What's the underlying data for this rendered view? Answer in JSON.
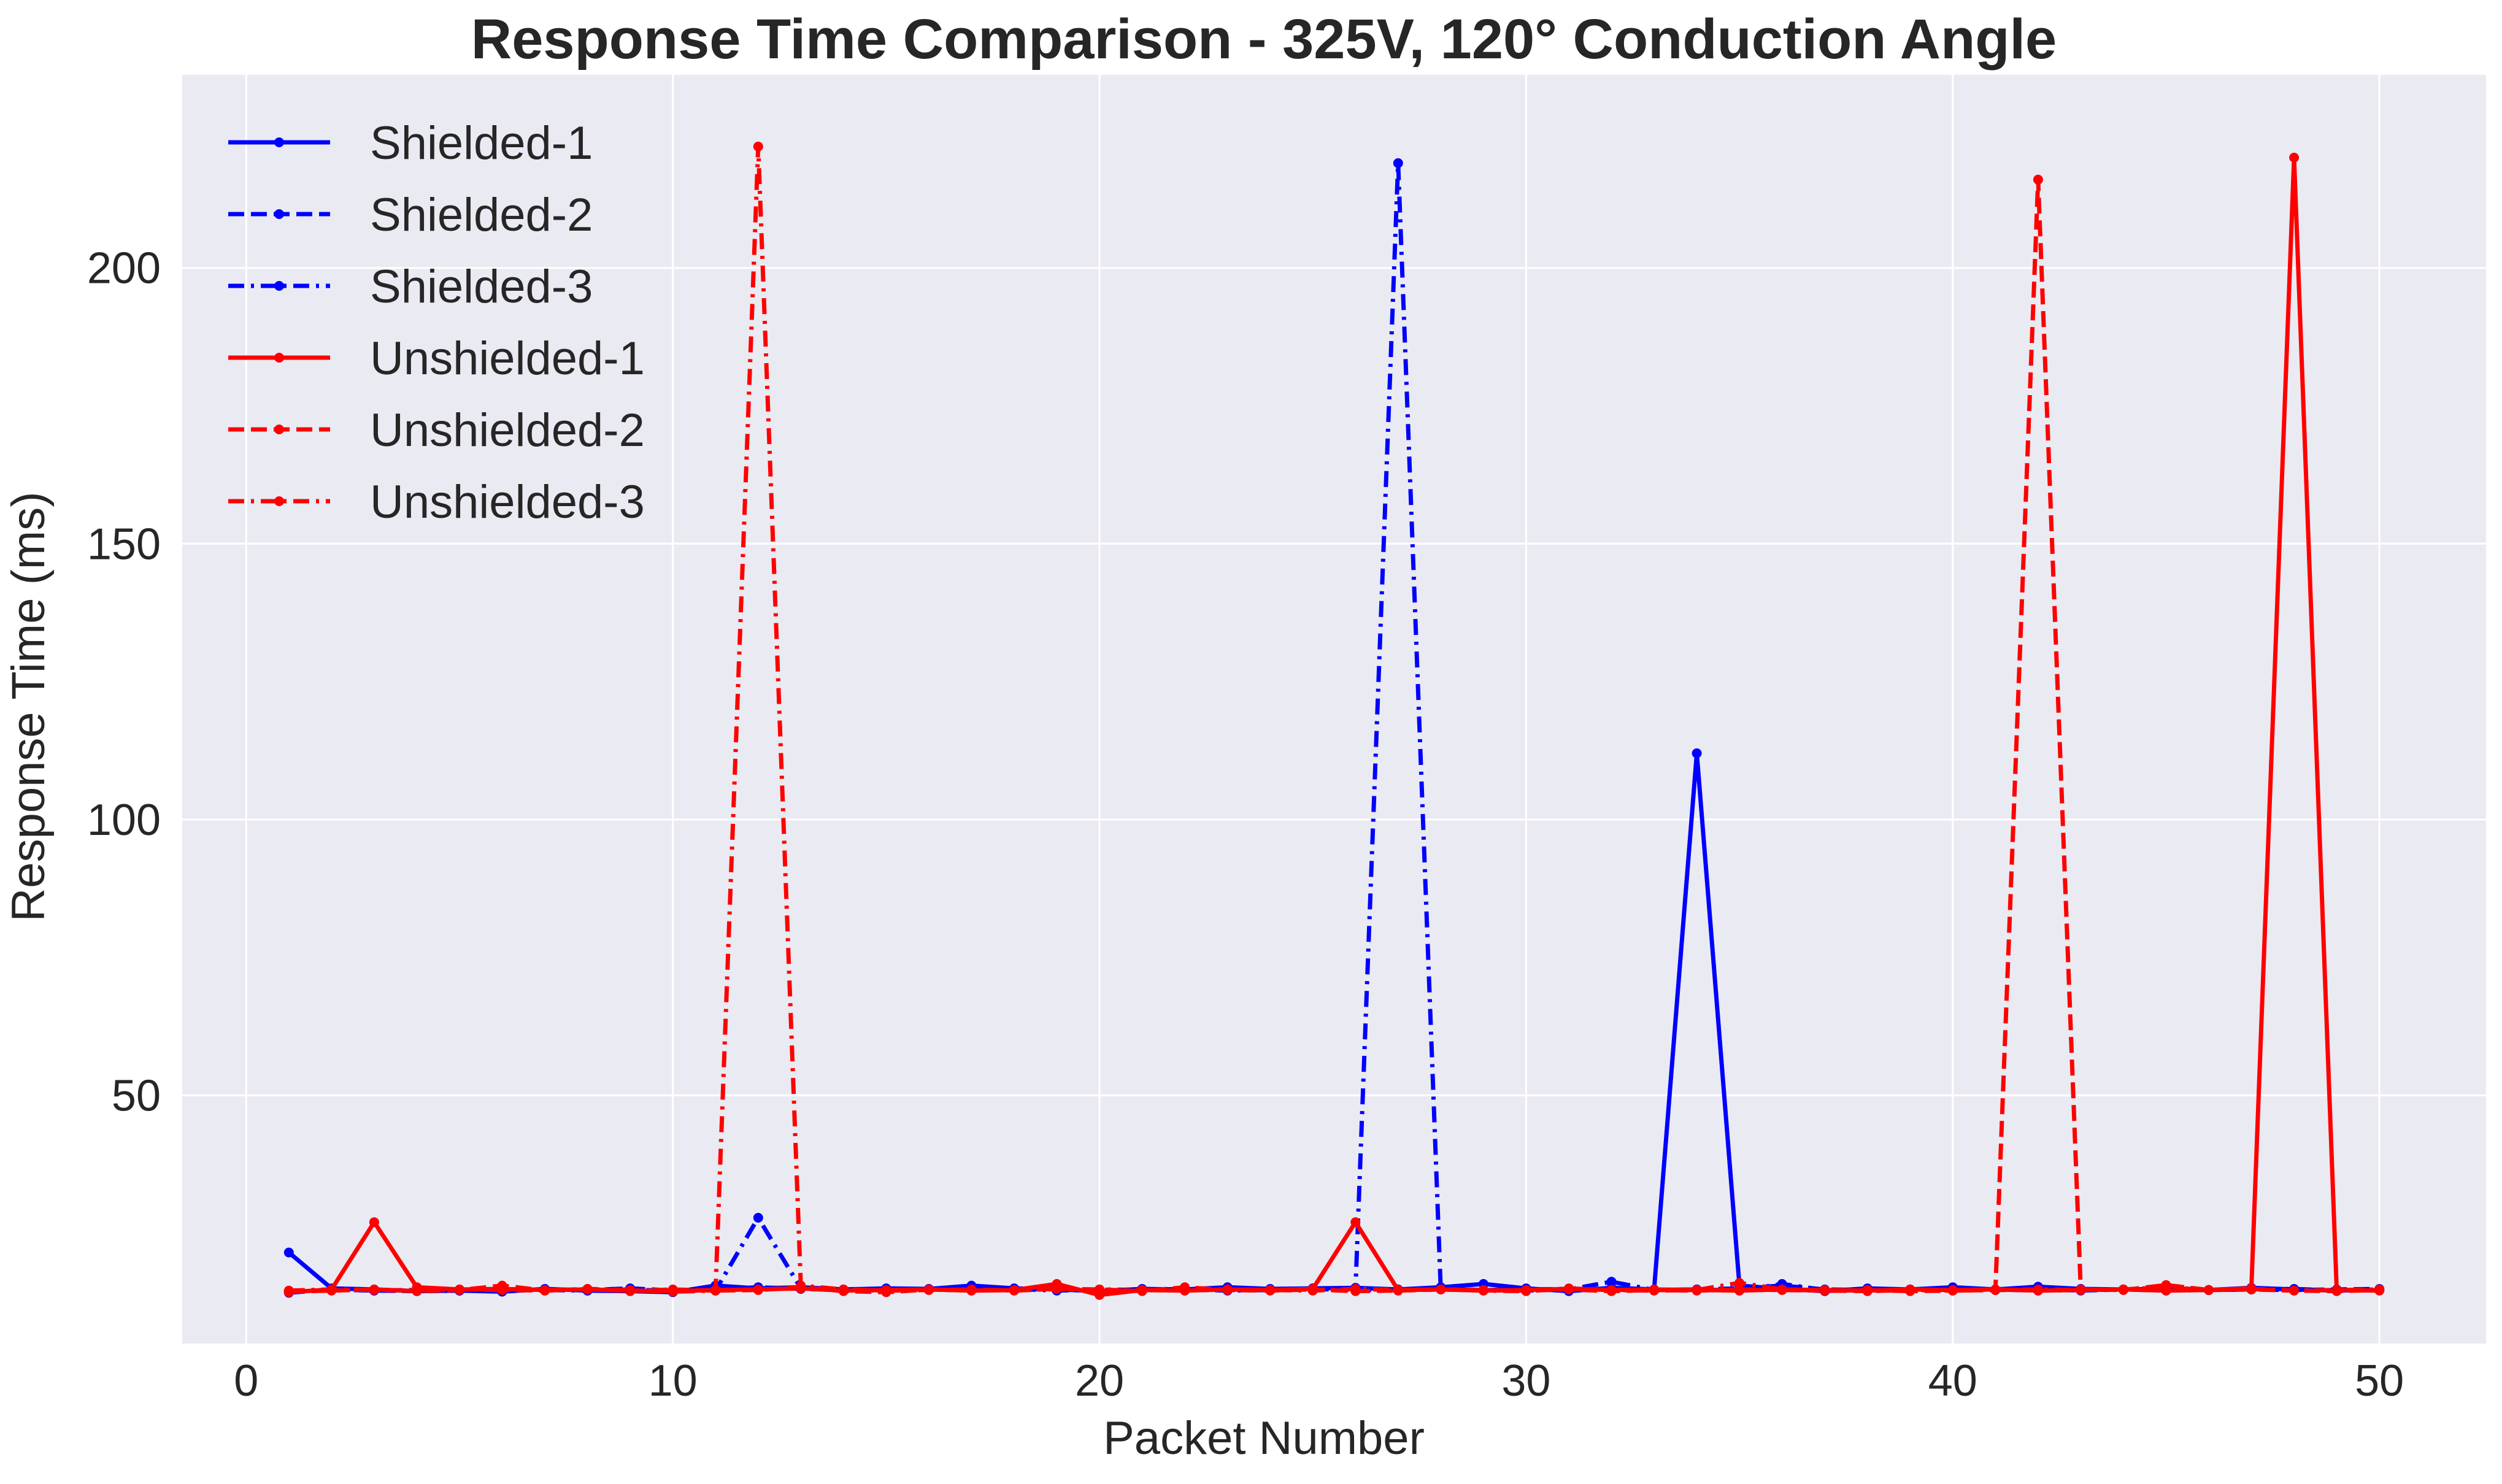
{
  "chart_data": {
    "type": "line",
    "title": "Response Time Comparison - 325V, 120° Conduction Angle",
    "xlabel": "Packet Number",
    "ylabel": "Response Time (ms)",
    "xlim": [
      -1.5,
      52.5
    ],
    "ylim": [
      5,
      235
    ],
    "xticks": [
      0,
      10,
      20,
      30,
      40,
      50
    ],
    "yticks": [
      50,
      100,
      150,
      200
    ],
    "grid": true,
    "legend_position": "top-left",
    "x": [
      1,
      2,
      3,
      4,
      5,
      6,
      7,
      8,
      9,
      10,
      11,
      12,
      13,
      14,
      15,
      16,
      17,
      18,
      19,
      20,
      21,
      22,
      23,
      24,
      25,
      26,
      27,
      28,
      29,
      30,
      31,
      32,
      33,
      34,
      35,
      36,
      37,
      38,
      39,
      40,
      41,
      42,
      43,
      44,
      45,
      46,
      47,
      48,
      49,
      50
    ],
    "series": [
      {
        "name": "Shielded-1",
        "color": "#0000ff",
        "dash": "solid",
        "values": [
          21.5,
          15,
          14.8,
          14.5,
          14.6,
          14.4,
          14.9,
          14.6,
          14.5,
          14.3,
          15.5,
          15,
          15.2,
          14.8,
          15,
          14.9,
          15.5,
          15,
          14.8,
          14.5,
          14.9,
          14.8,
          15.2,
          14.9,
          15,
          15.1,
          14.8,
          15.2,
          15.8,
          15,
          14.5,
          15.1,
          14.8,
          112,
          15.5,
          14.9,
          14.5,
          15,
          14.8,
          15.2,
          14.8,
          15.3,
          14.9,
          14.8,
          14.9,
          14.7,
          15.1,
          14.8,
          14.6,
          14.7
        ]
      },
      {
        "name": "Shielded-2",
        "color": "#0000ff",
        "dash": "dashed",
        "values": [
          14.2,
          14.8,
          14.6,
          14.5,
          14.6,
          14.5,
          14.8,
          14.7,
          15,
          14.6,
          14.8,
          15.2,
          14.9,
          14.7,
          14.8,
          14.9,
          14.8,
          14.7,
          14.9,
          14.5,
          14.8,
          14.9,
          14.7,
          14.8,
          15,
          14.7,
          14.8,
          14.9,
          14.7,
          14.8,
          14.9,
          14.8,
          14.7,
          14.8,
          15,
          15.5,
          14.8,
          14.7,
          14.8,
          14.9,
          14.7,
          14.8,
          14.6,
          14.8,
          14.9,
          14.7,
          14.8,
          14.7,
          14.8,
          14.9
        ]
      },
      {
        "name": "Shielded-3",
        "color": "#0000ff",
        "dash": "dashdot",
        "values": [
          14.5,
          14.8,
          14.6,
          14.7,
          14.6,
          14.8,
          14.7,
          14.6,
          14.8,
          14.5,
          14.6,
          27.8,
          15,
          14.7,
          14.6,
          14.8,
          14.7,
          14.9,
          14.6,
          14.8,
          14.7,
          14.8,
          14.6,
          14.7,
          14.8,
          14.9,
          219,
          14.8,
          14.7,
          14.6,
          14.8,
          16.2,
          14.7,
          14.8,
          14.6,
          15.8,
          14.7,
          14.6,
          14.8,
          14.7,
          14.8,
          14.6,
          14.7,
          14.8,
          14.6,
          14.7,
          14.8,
          14.9,
          14.6,
          14.7
        ]
      },
      {
        "name": "Unshielded-1",
        "color": "#ff0000",
        "dash": "solid",
        "values": [
          14.3,
          14.8,
          27,
          15.2,
          14.8,
          14.9,
          14.7,
          14.8,
          14.6,
          14.5,
          14.7,
          14.8,
          15,
          14.6,
          14.7,
          14.8,
          14.6,
          14.7,
          15.8,
          13.8,
          14.7,
          14.6,
          14.8,
          14.7,
          14.9,
          27,
          14.7,
          14.8,
          14.6,
          14.7,
          14.9,
          14.7,
          14.8,
          14.7,
          14.6,
          14.8,
          14.7,
          14.6,
          14.8,
          14.7,
          14.8,
          14.6,
          14.7,
          14.8,
          14.6,
          14.7,
          15,
          220,
          14.7,
          14.6
        ]
      },
      {
        "name": "Unshielded-2",
        "color": "#ff0000",
        "dash": "dashed",
        "values": [
          14.4,
          14.6,
          14.8,
          14.5,
          14.7,
          15.5,
          14.6,
          14.9,
          14.5,
          14.8,
          14.6,
          14.7,
          15.2,
          14.5,
          14.3,
          14.8,
          14.6,
          14.7,
          14.9,
          14.8,
          14.5,
          15.2,
          14.7,
          14.6,
          14.8,
          14.5,
          14.6,
          14.8,
          14.7,
          14.6,
          14.8,
          14.5,
          14.7,
          14.6,
          14.8,
          14.7,
          14.6,
          14.5,
          14.7,
          14.6,
          14.7,
          216,
          14.8,
          14.7,
          15.6,
          14.7,
          14.8,
          14.6,
          14.5,
          14.7
        ]
      },
      {
        "name": "Unshielded-3",
        "color": "#ff0000",
        "dash": "dashdot",
        "values": [
          14.6,
          14.8,
          14.7,
          14.6,
          14.8,
          14.7,
          14.6,
          14.9,
          14.7,
          14.4,
          14.6,
          222,
          15.5,
          14.8,
          14.6,
          14.7,
          14.8,
          14.6,
          14.9,
          14.5,
          14.7,
          14.6,
          14.8,
          14.7,
          14.6,
          14.9,
          14.7,
          14.8,
          14.6,
          14.5,
          15,
          14.7,
          14.6,
          14.7,
          16,
          14.8,
          14.6,
          14.7,
          14.5,
          14.6,
          14.7,
          14.8,
          14.7,
          14.8,
          15.2,
          14.7,
          14.9,
          14.6,
          14.7,
          14.8
        ]
      }
    ]
  }
}
